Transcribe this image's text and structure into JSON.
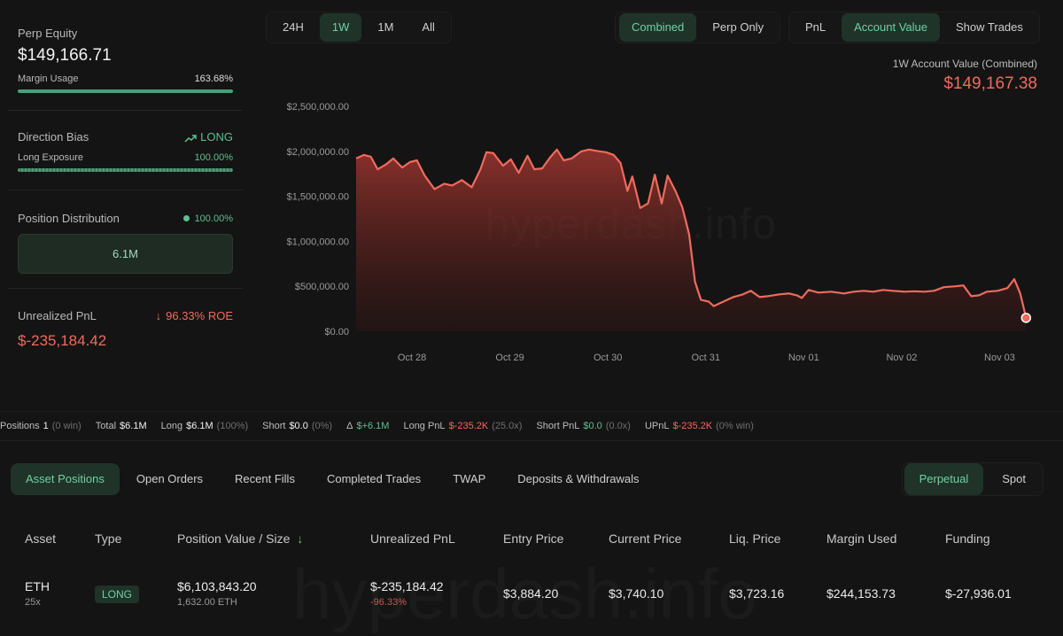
{
  "left": {
    "perp_equity_label": "Perp Equity",
    "perp_equity_value": "$149,166.71",
    "margin_usage_label": "Margin Usage",
    "margin_usage_value": "163.68%",
    "direction_bias_label": "Direction Bias",
    "direction_bias_value": "LONG",
    "long_exposure_label": "Long Exposure",
    "long_exposure_value": "100.00%",
    "position_distribution_label": "Position Distribution",
    "position_distribution_value": "100.00%",
    "position_distribution_box": "6.1M",
    "unrealized_pnl_label": "Unrealized PnL",
    "unrealized_pnl_roe": "96.33% ROE",
    "unrealized_pnl_value": "$-235,184.42"
  },
  "timeframes": [
    "24H",
    "1W",
    "1M",
    "All"
  ],
  "timeframe_active": 1,
  "mode_buttons": [
    "Combined",
    "Perp Only"
  ],
  "mode_active": 0,
  "view_buttons": [
    "PnL",
    "Account Value",
    "Show Trades"
  ],
  "view_active": 1,
  "chart_header": {
    "title": "1W Account Value (Combined)",
    "value": "$149,167.38"
  },
  "watermark": "hyperdash.info",
  "colors": {
    "accent_green": "#5fbf92",
    "accent_red": "#ef6b5e",
    "background": "#141414"
  },
  "chart_data": {
    "type": "area",
    "y_ticks": [
      "$2,500,000.00",
      "$2,000,000.00",
      "$1,500,000.00",
      "$1,000,000.00",
      "$500,000.00",
      "$0.00"
    ],
    "y_tick_values": [
      2500000,
      2000000,
      1500000,
      1000000,
      500000,
      0
    ],
    "ylim": [
      0,
      2500000
    ],
    "x_ticks": [
      "Oct 28",
      "Oct 29",
      "Oct 30",
      "Oct 31",
      "Nov 01",
      "Nov 02",
      "Nov 03"
    ],
    "x_tick_values": [
      0.57,
      1.57,
      2.57,
      3.57,
      4.57,
      5.57,
      6.57
    ],
    "xlim": [
      0,
      7.0
    ],
    "series": [
      {
        "values": [
          [
            0.0,
            1920000
          ],
          [
            0.08,
            1960000
          ],
          [
            0.15,
            1940000
          ],
          [
            0.22,
            1800000
          ],
          [
            0.3,
            1850000
          ],
          [
            0.38,
            1920000
          ],
          [
            0.47,
            1820000
          ],
          [
            0.55,
            1880000
          ],
          [
            0.62,
            1900000
          ],
          [
            0.7,
            1730000
          ],
          [
            0.8,
            1580000
          ],
          [
            0.9,
            1640000
          ],
          [
            0.98,
            1620000
          ],
          [
            1.08,
            1680000
          ],
          [
            1.18,
            1600000
          ],
          [
            1.27,
            1800000
          ],
          [
            1.33,
            1990000
          ],
          [
            1.4,
            1980000
          ],
          [
            1.5,
            1840000
          ],
          [
            1.58,
            1910000
          ],
          [
            1.66,
            1760000
          ],
          [
            1.75,
            1950000
          ],
          [
            1.82,
            1800000
          ],
          [
            1.9,
            1810000
          ],
          [
            1.98,
            1930000
          ],
          [
            2.05,
            2020000
          ],
          [
            2.12,
            1900000
          ],
          [
            2.2,
            1920000
          ],
          [
            2.3,
            2000000
          ],
          [
            2.38,
            2020000
          ],
          [
            2.48,
            2000000
          ],
          [
            2.55,
            1990000
          ],
          [
            2.63,
            1960000
          ],
          [
            2.7,
            1870000
          ],
          [
            2.77,
            1560000
          ],
          [
            2.82,
            1720000
          ],
          [
            2.9,
            1370000
          ],
          [
            2.98,
            1420000
          ],
          [
            3.05,
            1740000
          ],
          [
            3.12,
            1420000
          ],
          [
            3.18,
            1730000
          ],
          [
            3.26,
            1560000
          ],
          [
            3.33,
            1380000
          ],
          [
            3.4,
            1080000
          ],
          [
            3.46,
            550000
          ],
          [
            3.52,
            350000
          ],
          [
            3.6,
            330000
          ],
          [
            3.65,
            280000
          ],
          [
            3.75,
            330000
          ],
          [
            3.85,
            380000
          ],
          [
            3.95,
            410000
          ],
          [
            4.03,
            450000
          ],
          [
            4.12,
            380000
          ],
          [
            4.2,
            390000
          ],
          [
            4.32,
            410000
          ],
          [
            4.42,
            420000
          ],
          [
            4.5,
            400000
          ],
          [
            4.55,
            370000
          ],
          [
            4.62,
            460000
          ],
          [
            4.72,
            430000
          ],
          [
            4.85,
            440000
          ],
          [
            4.98,
            420000
          ],
          [
            5.08,
            440000
          ],
          [
            5.18,
            450000
          ],
          [
            5.28,
            440000
          ],
          [
            5.38,
            460000
          ],
          [
            5.48,
            450000
          ],
          [
            5.6,
            440000
          ],
          [
            5.7,
            445000
          ],
          [
            5.8,
            440000
          ],
          [
            5.9,
            450000
          ],
          [
            6.0,
            490000
          ],
          [
            6.12,
            500000
          ],
          [
            6.2,
            510000
          ],
          [
            6.28,
            390000
          ],
          [
            6.36,
            400000
          ],
          [
            6.44,
            440000
          ],
          [
            6.55,
            450000
          ],
          [
            6.65,
            480000
          ],
          [
            6.72,
            580000
          ],
          [
            6.78,
            420000
          ],
          [
            6.84,
            149167
          ]
        ]
      }
    ]
  },
  "stats": [
    {
      "label": "Positions",
      "value": "1",
      "extra": "(0 win)",
      "value_color": "plain"
    },
    {
      "label": "Total",
      "value": "$6.1M",
      "extra": "",
      "value_color": "plain"
    },
    {
      "label": "Long",
      "value": "$6.1M",
      "extra": "(100%)",
      "value_color": "plain"
    },
    {
      "label": "Short",
      "value": "$0.0",
      "extra": "(0%)",
      "value_color": "plain"
    },
    {
      "label": "Δ",
      "value": "$+6.1M",
      "extra": "",
      "value_color": "green"
    },
    {
      "label": "Long PnL",
      "value": "$-235.2K",
      "extra": "(25.0x)",
      "value_color": "red"
    },
    {
      "label": "Short PnL",
      "value": "$0.0",
      "extra": "(0.0x)",
      "value_color": "green"
    },
    {
      "label": "UPnL",
      "value": "$-235.2K",
      "extra": "(0% win)",
      "value_color": "red"
    }
  ],
  "tabs": [
    "Asset Positions",
    "Open Orders",
    "Recent Fills",
    "Completed Trades",
    "TWAP",
    "Deposits & Withdrawals"
  ],
  "tab_active": 0,
  "market_tabs": [
    "Perpetual",
    "Spot"
  ],
  "market_active": 0,
  "table": {
    "headers": [
      "Asset",
      "Type",
      "Position Value / Size",
      "Unrealized PnL",
      "Entry Price",
      "Current Price",
      "Liq. Price",
      "Margin Used",
      "Funding"
    ],
    "row": {
      "asset": "ETH",
      "leverage": "25x",
      "type": "LONG",
      "position_value": "$6,103,843.20",
      "size": "1,632.00 ETH",
      "pnl": "$-235,184.42",
      "pnl_pct": "-96.33%",
      "entry_price": "$3,884.20",
      "current_price": "$3,740.10",
      "liq_price": "$3,723.16",
      "margin_used": "$244,153.73",
      "funding": "$-27,936.01"
    }
  }
}
